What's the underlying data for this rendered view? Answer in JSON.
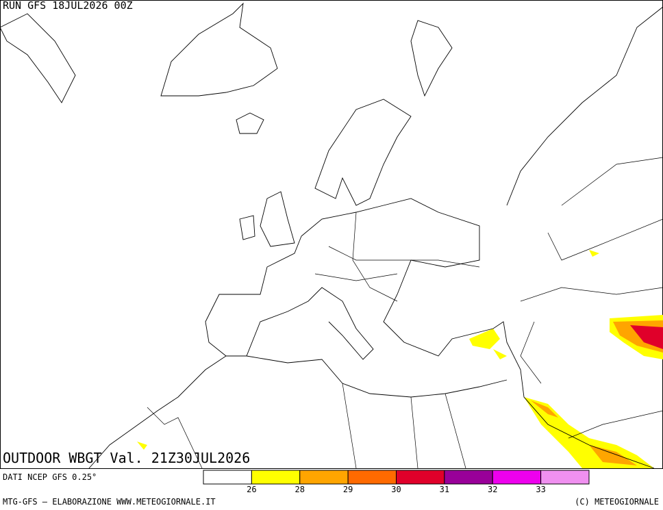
{
  "header": {
    "run": "RUN GFS 18JUL2026 00Z"
  },
  "map": {
    "title": "OUTDOOR WBGT Val. 21Z30JUL2026"
  },
  "legend": {
    "source": "DATI NCEP GFS 0.25°",
    "colors": [
      "#ffffff",
      "#ffff00",
      "#ffa500",
      "#ff6a00",
      "#e0002a",
      "#990099",
      "#ee00ee",
      "#f090f0"
    ],
    "labels": [
      "26",
      "28",
      "29",
      "30",
      "31",
      "32",
      "33"
    ]
  },
  "footer": {
    "left": "MTG-GFS — ELABORAZIONE WWW.METEOGIORNALE.IT",
    "right": "(C) METEOGIORNALE"
  }
}
